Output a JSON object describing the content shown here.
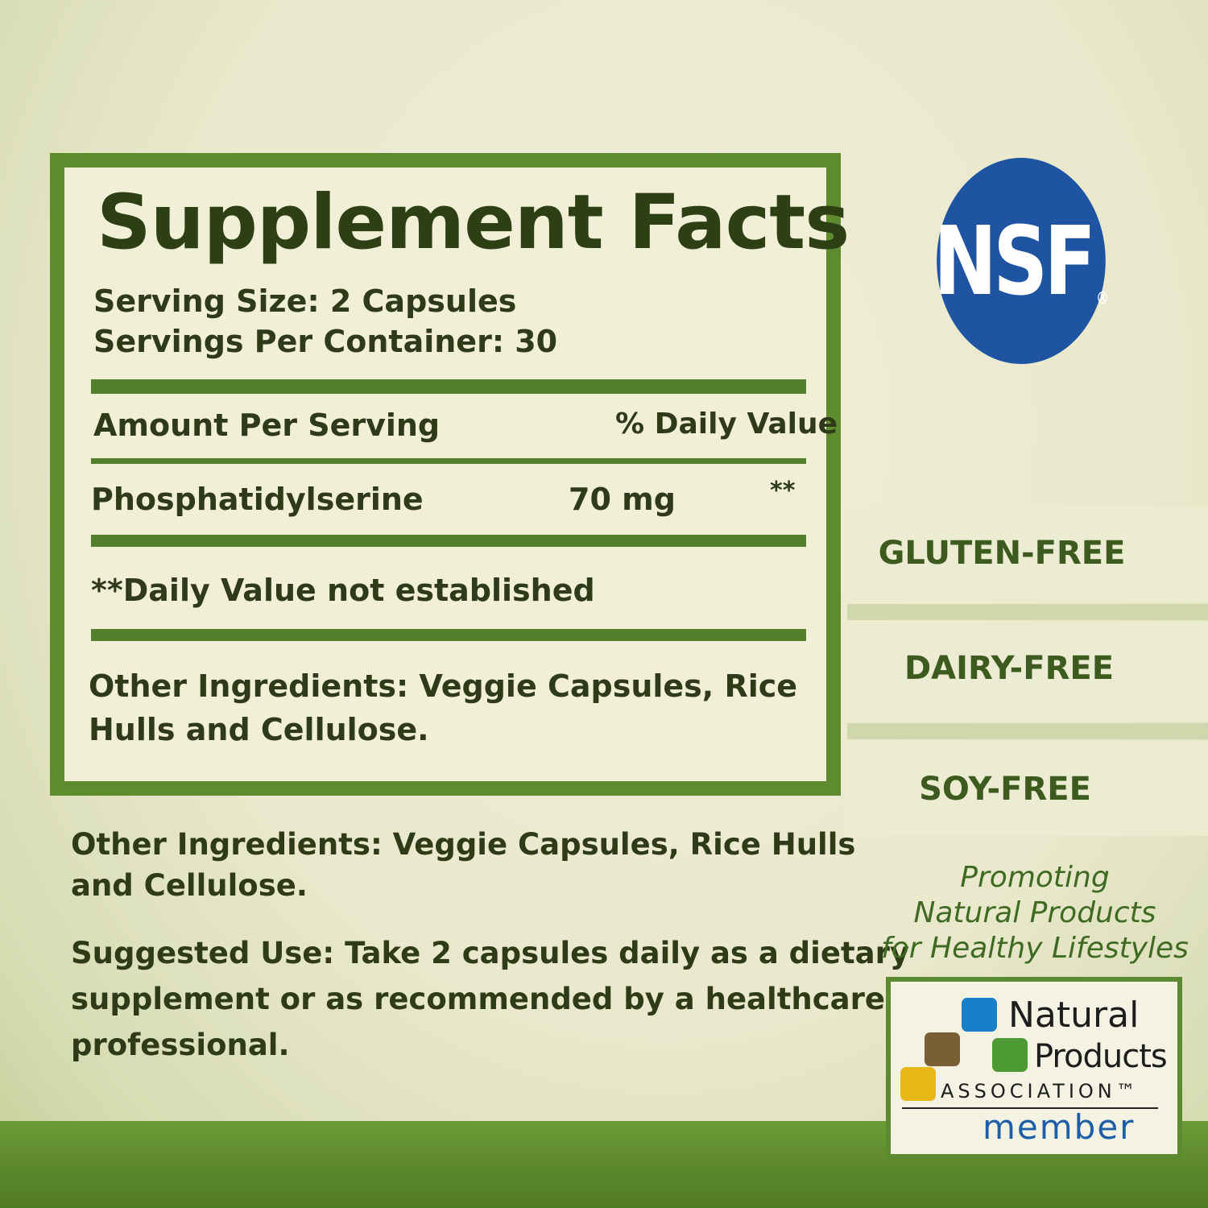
{
  "facts": {
    "title": "Supplement Facts",
    "serving_size": "Serving Size: 2 Capsules",
    "servings_per_container": "Servings Per Container: 30",
    "amount_header": "Amount Per Serving",
    "dv_header": "% Daily Value",
    "ingredient": {
      "name": "Phosphatidylserine",
      "amount": "70 mg",
      "dv": "**"
    },
    "footnote": "**Daily Value not established",
    "other_ingredients_line1": "Other Ingredients: Veggie Capsules, Rice",
    "other_ingredients_line2": "Hulls and Cellulose."
  },
  "below": {
    "other_line1": "Other Ingredients: Veggie Capsules, Rice Hulls",
    "other_line2": "and Cellulose.",
    "use_line1": "Suggested Use: Take 2 capsules daily as a dietary",
    "use_line2": "supplement or as recommended by a healthcare",
    "use_line3": "professional."
  },
  "nsf": {
    "text": "NSF",
    "reg": "®",
    "color": "#1f54a3"
  },
  "badges": [
    "GLUTEN-FREE",
    "DAIRY-FREE",
    "SOY-FREE"
  ],
  "promo": [
    "Promoting",
    "Natural Products",
    "for Healthy Lifestyles"
  ],
  "npa": {
    "line1": "Natural",
    "line2": "Products",
    "line3": "ASSOCIATION™",
    "member": "member",
    "colors": [
      "#1a7fc9",
      "#7a5e34",
      "#4b9a32",
      "#e8b818"
    ]
  },
  "colors": {
    "brand_green": "#5f8b2f",
    "text": "#2a3316"
  }
}
